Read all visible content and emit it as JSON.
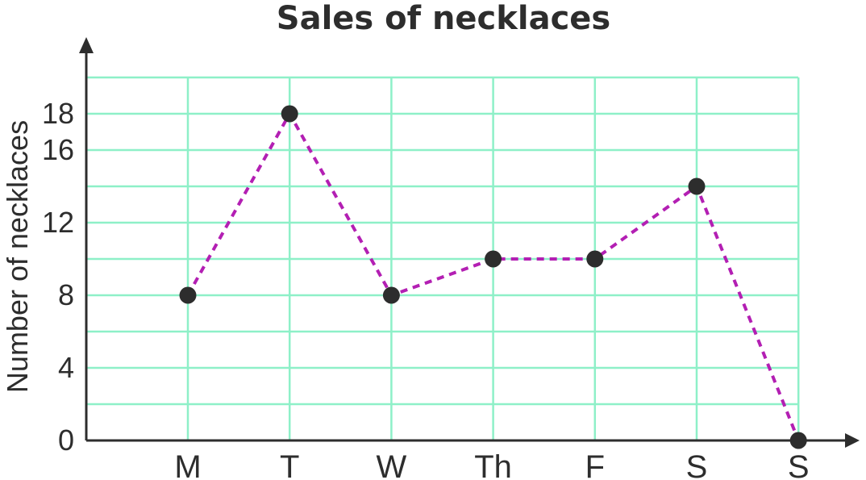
{
  "chart_data": {
    "type": "line",
    "title": "Sales of necklaces",
    "xlabel": "",
    "ylabel": "Number of necklaces",
    "categories": [
      "M",
      "T",
      "W",
      "Th",
      "F",
      "S",
      "S"
    ],
    "series": [
      {
        "values": [
          8,
          18,
          8,
          10,
          10,
          14,
          0
        ]
      }
    ],
    "ylim": [
      0,
      20
    ],
    "yticks": [
      0,
      4,
      8,
      12,
      16,
      18
    ],
    "ytick_labels": [
      "0",
      "4",
      "8",
      "12",
      "16",
      "18"
    ],
    "grid": true,
    "line_style": "dashed",
    "colors": {
      "line": "#b31fb3",
      "marker": "#2d2d2d",
      "grid": "#8ef0c8",
      "axis": "#2d2d2d"
    }
  }
}
